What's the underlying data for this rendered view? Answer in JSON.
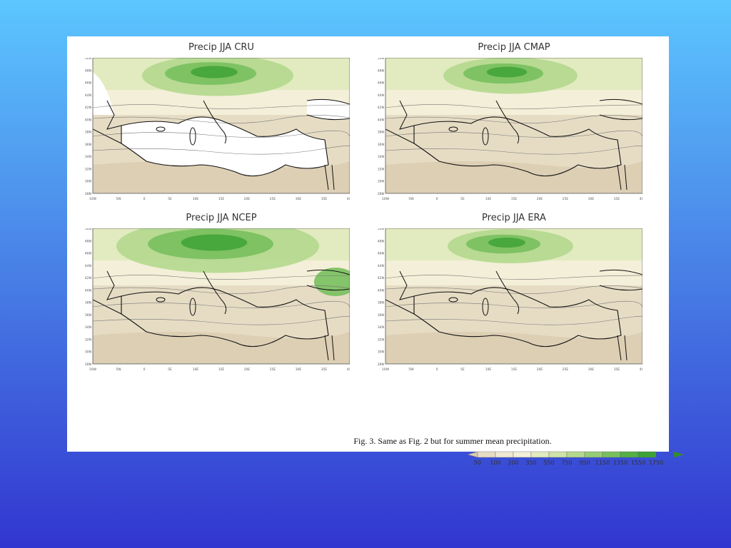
{
  "figure": {
    "caption": "Fig. 3. Same as Fig. 2 but for summer mean precipitation.",
    "panels": [
      {
        "id": "cru",
        "title": "Precip  JJA  CRU",
        "sea_mask": true,
        "intensity": 0.55
      },
      {
        "id": "cmap",
        "title": "Precip  JJA    CMAP",
        "sea_mask": false,
        "intensity": 0.45
      },
      {
        "id": "ncep",
        "title": "Precip  JJA  NCEP",
        "sea_mask": false,
        "intensity": 0.85
      },
      {
        "id": "era",
        "title": "Precip  JJA  ERA",
        "sea_mask": false,
        "intensity": 0.4
      }
    ],
    "lat_ticks": [
      "50N",
      "48N",
      "46N",
      "44N",
      "42N",
      "40N",
      "38N",
      "36N",
      "34N",
      "32N",
      "30N",
      "28N"
    ],
    "lon_ticks": [
      "10W",
      "5W",
      "0",
      "5E",
      "10E",
      "15E",
      "20E",
      "25E",
      "30E",
      "35E",
      "40E"
    ],
    "colorbar": {
      "levels": [
        "50",
        "100",
        "200",
        "350",
        "550",
        "750",
        "950",
        "1150",
        "1350",
        "1550",
        "1750"
      ],
      "colors": [
        "#d9ccb0",
        "#e6dcc4",
        "#efe8d4",
        "#f3efd8",
        "#e2ebbf",
        "#cfe3a8",
        "#b4d88e",
        "#97cc76",
        "#78bf5e",
        "#55b046",
        "#3ea236",
        "#2e8f2a"
      ]
    }
  }
}
